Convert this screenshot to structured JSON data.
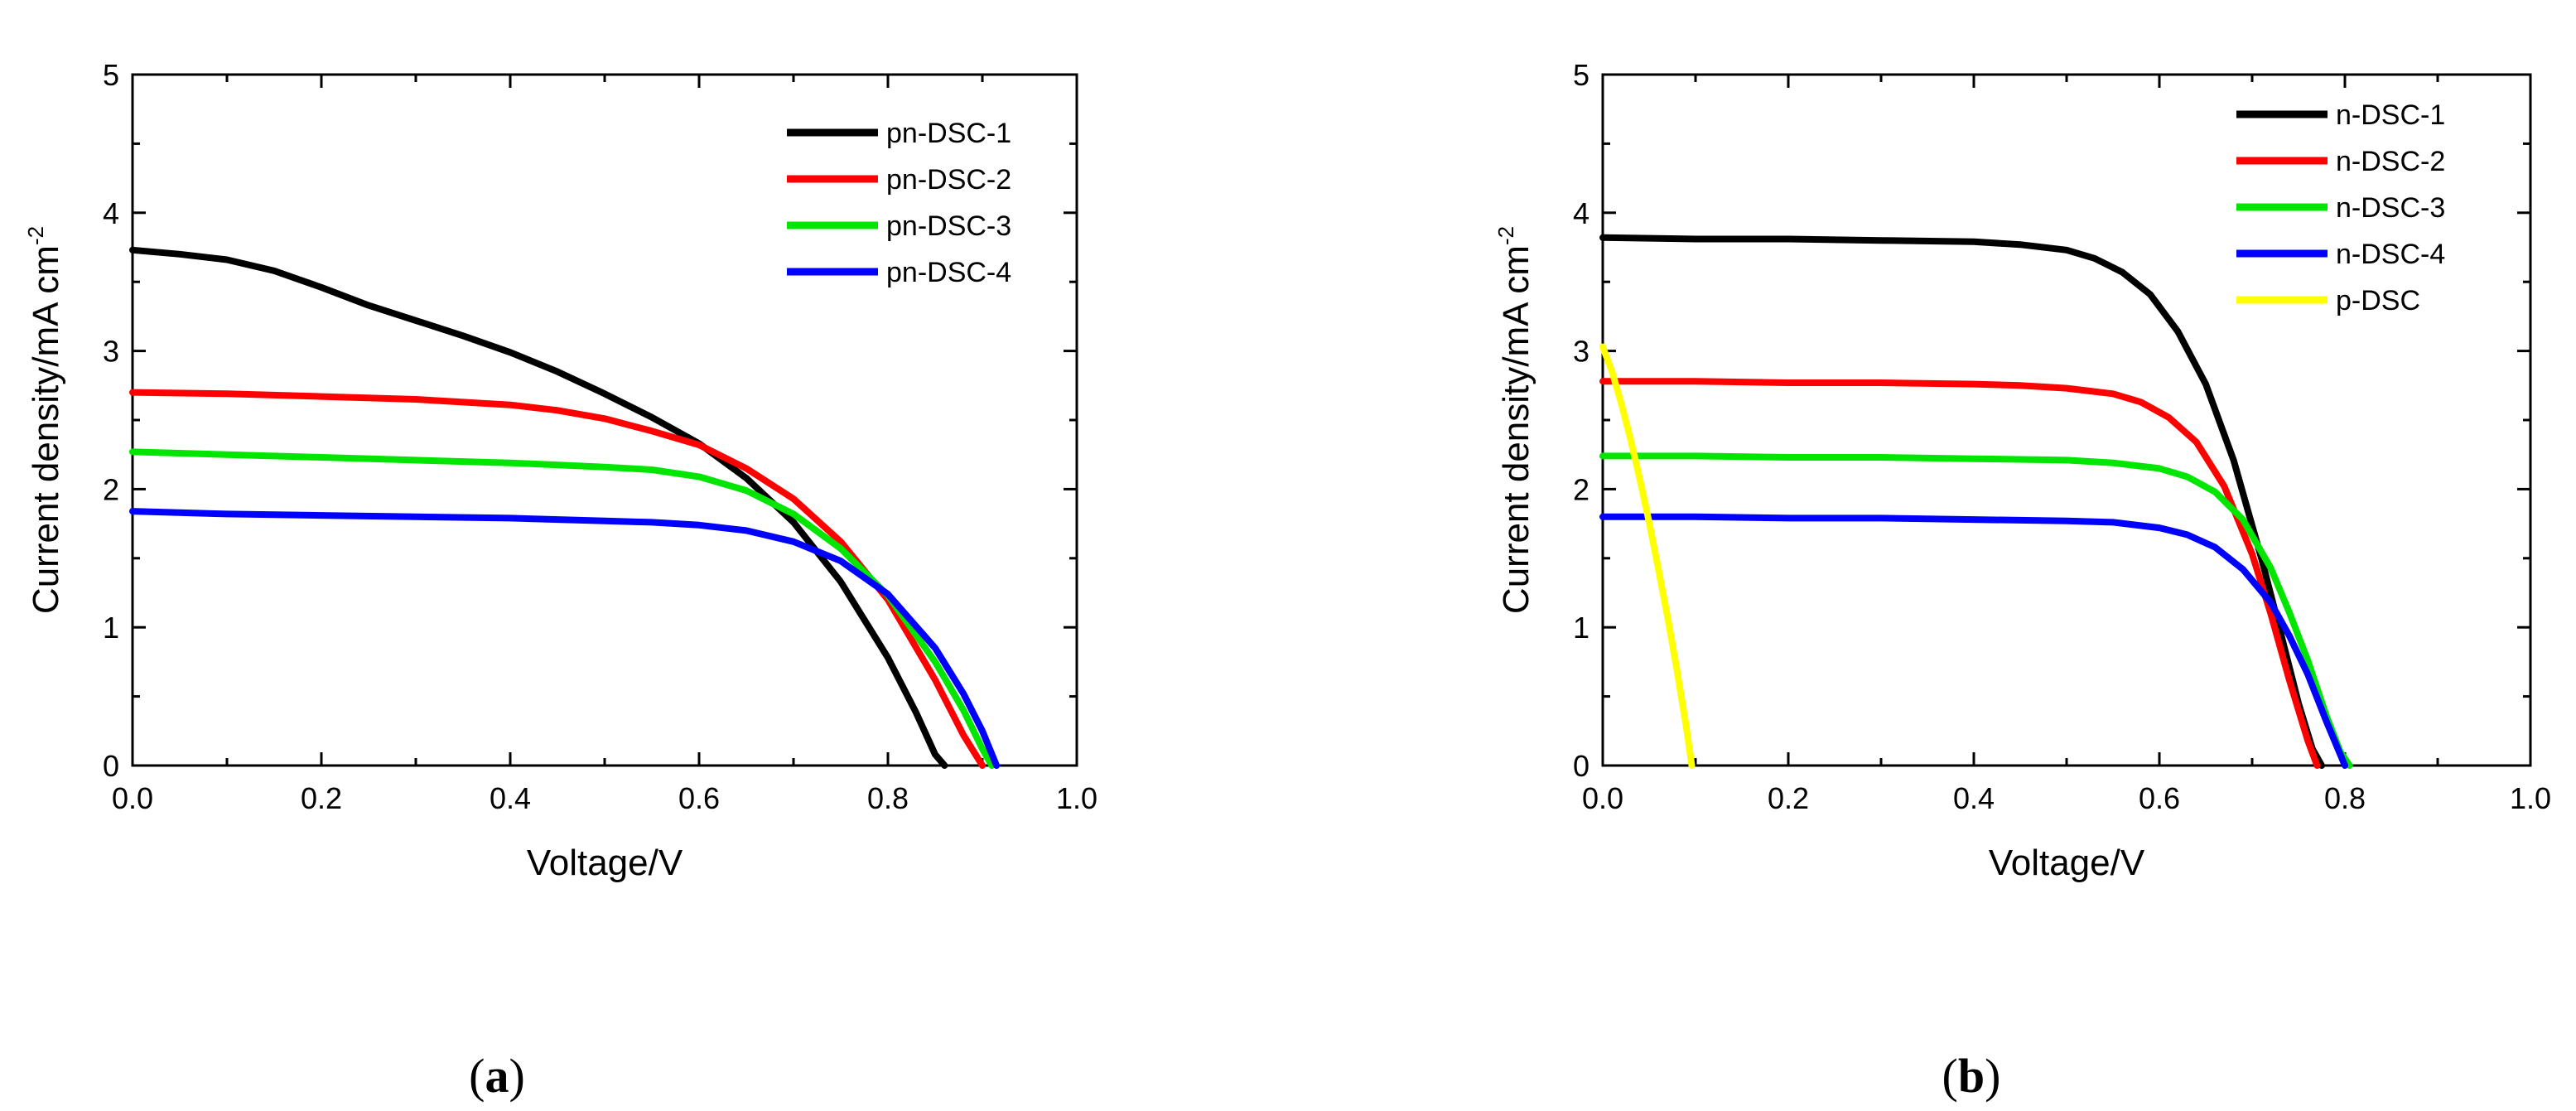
{
  "chart_data": [
    {
      "type": "line",
      "panel": "a",
      "caption": {
        "open": "(",
        "letter": "a",
        "close": ")"
      },
      "xlabel": "Voltage/V",
      "ylabel": {
        "main": "Current density/mA cm",
        "sup": "-2"
      },
      "xlim": [
        0.0,
        1.0
      ],
      "ylim": [
        0,
        5
      ],
      "xticks": [
        "0.0",
        "0.2",
        "0.4",
        "0.6",
        "0.8",
        "1.0"
      ],
      "yticks": [
        "0",
        "1",
        "2",
        "3",
        "4",
        "5"
      ],
      "legend_position": "top-right",
      "series": [
        {
          "name": "pn-DSC-1",
          "color": "#000000",
          "x": [
            0.0,
            0.05,
            0.1,
            0.15,
            0.2,
            0.25,
            0.3,
            0.35,
            0.4,
            0.45,
            0.5,
            0.55,
            0.6,
            0.65,
            0.7,
            0.75,
            0.8,
            0.83,
            0.85,
            0.86
          ],
          "y": [
            3.73,
            3.7,
            3.66,
            3.58,
            3.46,
            3.33,
            3.22,
            3.11,
            2.99,
            2.85,
            2.69,
            2.52,
            2.33,
            2.08,
            1.76,
            1.33,
            0.78,
            0.38,
            0.08,
            0.0
          ]
        },
        {
          "name": "pn-DSC-2",
          "color": "#ff0000",
          "x": [
            0.0,
            0.1,
            0.2,
            0.3,
            0.4,
            0.45,
            0.5,
            0.55,
            0.6,
            0.65,
            0.7,
            0.75,
            0.8,
            0.85,
            0.88,
            0.9
          ],
          "y": [
            2.7,
            2.69,
            2.67,
            2.65,
            2.61,
            2.57,
            2.51,
            2.42,
            2.32,
            2.15,
            1.93,
            1.62,
            1.2,
            0.62,
            0.22,
            0.0
          ]
        },
        {
          "name": "pn-DSC-3",
          "color": "#00e600",
          "x": [
            0.0,
            0.1,
            0.2,
            0.3,
            0.4,
            0.5,
            0.55,
            0.6,
            0.65,
            0.7,
            0.75,
            0.8,
            0.85,
            0.88,
            0.9,
            0.91
          ],
          "y": [
            2.27,
            2.25,
            2.23,
            2.21,
            2.19,
            2.16,
            2.14,
            2.09,
            1.99,
            1.82,
            1.57,
            1.23,
            0.75,
            0.4,
            0.12,
            0.0
          ]
        },
        {
          "name": "pn-DSC-4",
          "color": "#0000ff",
          "x": [
            0.0,
            0.1,
            0.2,
            0.3,
            0.4,
            0.5,
            0.55,
            0.6,
            0.65,
            0.7,
            0.75,
            0.8,
            0.85,
            0.88,
            0.9,
            0.915
          ],
          "y": [
            1.84,
            1.82,
            1.81,
            1.8,
            1.79,
            1.77,
            1.76,
            1.74,
            1.7,
            1.62,
            1.48,
            1.24,
            0.85,
            0.52,
            0.25,
            0.0
          ]
        }
      ]
    },
    {
      "type": "line",
      "panel": "b",
      "caption": {
        "open": "(",
        "letter": "b",
        "close": ")"
      },
      "xlabel": "Voltage/V",
      "ylabel": {
        "main": "Current density/mA cm",
        "sup": "-2"
      },
      "xlim": [
        0.0,
        1.0
      ],
      "ylim": [
        0,
        5
      ],
      "xticks": [
        "0.0",
        "0.2",
        "0.4",
        "0.6",
        "0.8",
        "1.0"
      ],
      "yticks": [
        "0",
        "1",
        "2",
        "3",
        "4",
        "5"
      ],
      "legend_position": "top-right",
      "series": [
        {
          "name": "n-DSC-1",
          "color": "#000000",
          "x": [
            0.0,
            0.1,
            0.2,
            0.3,
            0.4,
            0.45,
            0.5,
            0.53,
            0.56,
            0.59,
            0.62,
            0.65,
            0.68,
            0.71,
            0.73,
            0.75,
            0.765,
            0.775
          ],
          "y": [
            3.82,
            3.81,
            3.81,
            3.8,
            3.79,
            3.77,
            3.73,
            3.67,
            3.57,
            3.41,
            3.14,
            2.76,
            2.21,
            1.5,
            0.98,
            0.45,
            0.12,
            0.0
          ]
        },
        {
          "name": "n-DSC-2",
          "color": "#ff0000",
          "x": [
            0.0,
            0.1,
            0.2,
            0.3,
            0.4,
            0.45,
            0.5,
            0.55,
            0.58,
            0.61,
            0.64,
            0.67,
            0.7,
            0.72,
            0.74,
            0.76,
            0.77
          ],
          "y": [
            2.78,
            2.78,
            2.77,
            2.77,
            2.76,
            2.75,
            2.73,
            2.69,
            2.63,
            2.52,
            2.34,
            2.02,
            1.53,
            1.1,
            0.62,
            0.18,
            0.0
          ]
        },
        {
          "name": "n-DSC-3",
          "color": "#00e600",
          "x": [
            0.0,
            0.1,
            0.2,
            0.3,
            0.4,
            0.5,
            0.55,
            0.6,
            0.63,
            0.66,
            0.69,
            0.72,
            0.74,
            0.76,
            0.78,
            0.795,
            0.805
          ],
          "y": [
            2.24,
            2.24,
            2.23,
            2.23,
            2.22,
            2.21,
            2.19,
            2.15,
            2.09,
            1.98,
            1.78,
            1.43,
            1.11,
            0.76,
            0.36,
            0.1,
            0.0
          ]
        },
        {
          "name": "n-DSC-4",
          "color": "#0000ff",
          "x": [
            0.0,
            0.1,
            0.2,
            0.3,
            0.4,
            0.5,
            0.55,
            0.6,
            0.63,
            0.66,
            0.69,
            0.72,
            0.74,
            0.76,
            0.78,
            0.795,
            0.8
          ],
          "y": [
            1.8,
            1.8,
            1.79,
            1.79,
            1.78,
            1.77,
            1.76,
            1.72,
            1.67,
            1.58,
            1.42,
            1.18,
            0.94,
            0.66,
            0.32,
            0.08,
            0.0
          ]
        },
        {
          "name": "p-DSC",
          "color": "#ffff00",
          "x": [
            0.0,
            0.01,
            0.02,
            0.03,
            0.04,
            0.05,
            0.06,
            0.07,
            0.08,
            0.09,
            0.096
          ],
          "y": [
            3.03,
            2.85,
            2.62,
            2.36,
            2.07,
            1.76,
            1.42,
            1.07,
            0.69,
            0.28,
            0.0
          ]
        }
      ]
    }
  ]
}
